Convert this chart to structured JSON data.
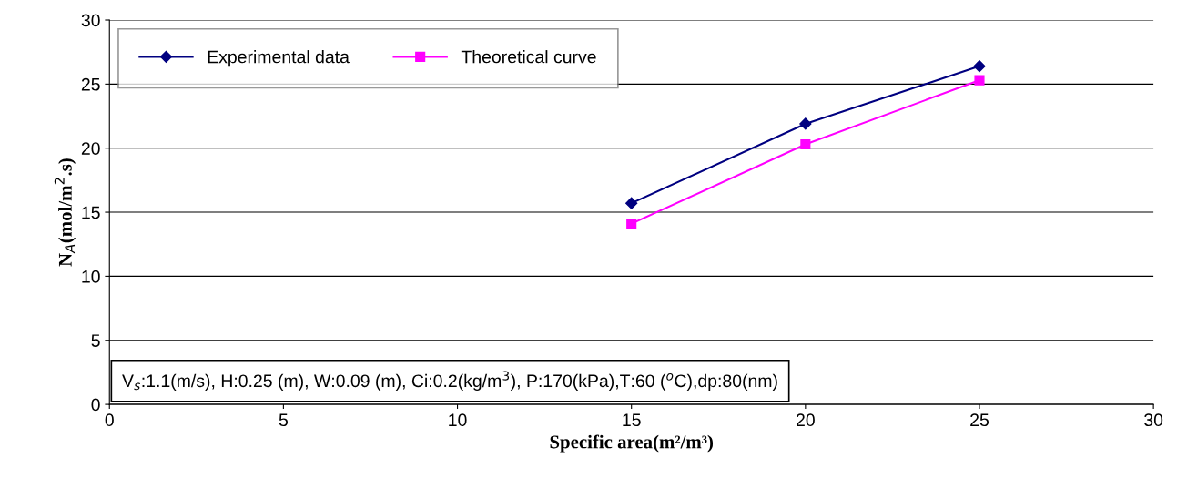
{
  "chart_data": {
    "type": "line",
    "xlabel": "Specific area(m²/m³)",
    "ylabel": "N$_{A}$(mol/m$^{2}$.s)",
    "x": [
      15,
      20,
      25
    ],
    "series": [
      {
        "name": "Experimental data",
        "color": "#000080",
        "marker": "diamond",
        "values": [
          15.7,
          21.9,
          26.4
        ]
      },
      {
        "name": "Theoretical curve",
        "color": "#ff00ff",
        "marker": "square",
        "values": [
          14.1,
          20.3,
          25.3
        ]
      }
    ],
    "xlim": [
      0,
      30
    ],
    "xticks": [
      0,
      5,
      10,
      15,
      20,
      25,
      30
    ],
    "ylim": [
      0,
      30
    ],
    "yticks": [
      0,
      5,
      10,
      15,
      20,
      25,
      30
    ],
    "grid": "y",
    "legend": "top left",
    "annotations": [
      "V$_{s}$:1.1(m/s), H:0.25 (m), W:0.09 (m), Ci:0.2(kg/m$^{3}$), P:170(kPa),T:60 ($^{o}$C),dp:80(nm)"
    ]
  }
}
